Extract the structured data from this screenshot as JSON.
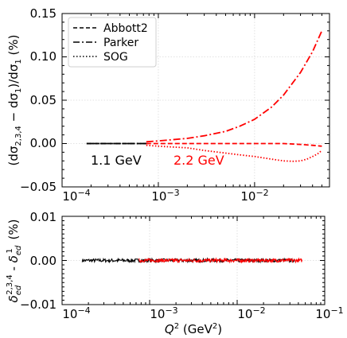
{
  "chart_data": [
    {
      "type": "line",
      "ylabel": "(dσ_{2,3,4} − dσ_1)/dσ_1 (%)",
      "xscale": "log",
      "xlim": [
        0.0001,
        0.06
      ],
      "ylim": [
        -0.05,
        0.15
      ],
      "x_ticks": [
        "10^{-4}",
        "10^{-3}",
        "10^{-2}"
      ],
      "y_ticks": [
        "−0.05",
        "0.00",
        "0.05",
        "0.10",
        "0.15"
      ],
      "grid": true,
      "legend": {
        "placement": "upper-left",
        "entries": [
          {
            "label": "Abbott2",
            "dash": "dashed"
          },
          {
            "label": "Parker",
            "dash": "dashdot"
          },
          {
            "label": "SOG",
            "dash": "dotted"
          }
        ]
      },
      "annotations": [
        {
          "text": "1.1 GeV",
          "color": "#000000"
        },
        {
          "text": "2.2 GeV",
          "color": "#ff0000"
        }
      ],
      "series": [
        {
          "group": "1.1 GeV",
          "color": "#000000",
          "dash": "dashed",
          "x": [
            0.00018,
            0.0003,
            0.0005,
            0.00075
          ],
          "y": [
            0.0,
            0.0,
            0.0,
            0.0
          ]
        },
        {
          "group": "1.1 GeV",
          "color": "#000000",
          "dash": "dashdot",
          "x": [
            0.00018,
            0.0003,
            0.0005,
            0.00075
          ],
          "y": [
            0.0,
            0.0,
            0.0,
            0.0
          ]
        },
        {
          "group": "1.1 GeV",
          "color": "#000000",
          "dash": "dotted",
          "x": [
            0.00018,
            0.0003,
            0.0005,
            0.00075
          ],
          "y": [
            0.0,
            0.0,
            0.0,
            0.0
          ]
        },
        {
          "group": "2.2 GeV",
          "color": "#ff0000",
          "dash": "dashdot",
          "x": [
            0.00075,
            0.001,
            0.002,
            0.003,
            0.005,
            0.007,
            0.01,
            0.015,
            0.02,
            0.03,
            0.04,
            0.05
          ],
          "y": [
            0.002,
            0.003,
            0.006,
            0.009,
            0.014,
            0.02,
            0.028,
            0.042,
            0.056,
            0.082,
            0.106,
            0.13
          ]
        },
        {
          "group": "2.2 GeV",
          "color": "#ff0000",
          "dash": "dashed",
          "x": [
            0.00075,
            0.001,
            0.002,
            0.005,
            0.01,
            0.02,
            0.03,
            0.04,
            0.05
          ],
          "y": [
            0.0,
            0.0,
            0.0,
            0.0,
            0.0,
            0.0,
            -0.001,
            -0.002,
            -0.003
          ]
        },
        {
          "group": "2.2 GeV",
          "color": "#ff0000",
          "dash": "dotted",
          "x": [
            0.00075,
            0.001,
            0.002,
            0.003,
            0.005,
            0.007,
            0.01,
            0.015,
            0.02,
            0.025,
            0.03,
            0.035,
            0.04,
            0.045,
            0.05
          ],
          "y": [
            -0.002,
            -0.003,
            -0.005,
            -0.008,
            -0.011,
            -0.013,
            -0.015,
            -0.018,
            -0.02,
            -0.0205,
            -0.02,
            -0.018,
            -0.015,
            -0.012,
            -0.008
          ]
        }
      ]
    },
    {
      "type": "line",
      "xlabel": "Q^2 (GeV^2)",
      "ylabel": "δ_{ed}^{2,3,4} - δ_{ed}^{1} (%)",
      "xscale": "log",
      "xlim": [
        0.0001,
        0.1
      ],
      "ylim": [
        -0.01,
        0.01
      ],
      "x_ticks": [
        "10^{-4}",
        "10^{-3}",
        "10^{-2}",
        "10^{-1}"
      ],
      "y_ticks": [
        "−0.01",
        "0.00",
        "0.01"
      ],
      "grid": true,
      "series": [
        {
          "group": "1.1 GeV",
          "color": "#000000",
          "style": "noisy band",
          "x_range": [
            0.00017,
            0.045
          ],
          "y_center": 0.0,
          "y_halfwidth": 0.0004
        },
        {
          "group": "2.2 GeV",
          "color": "#ff0000",
          "style": "noisy band",
          "x_range": [
            0.00075,
            0.055
          ],
          "y_center": 0.0,
          "y_halfwidth": 0.0004
        }
      ]
    }
  ]
}
